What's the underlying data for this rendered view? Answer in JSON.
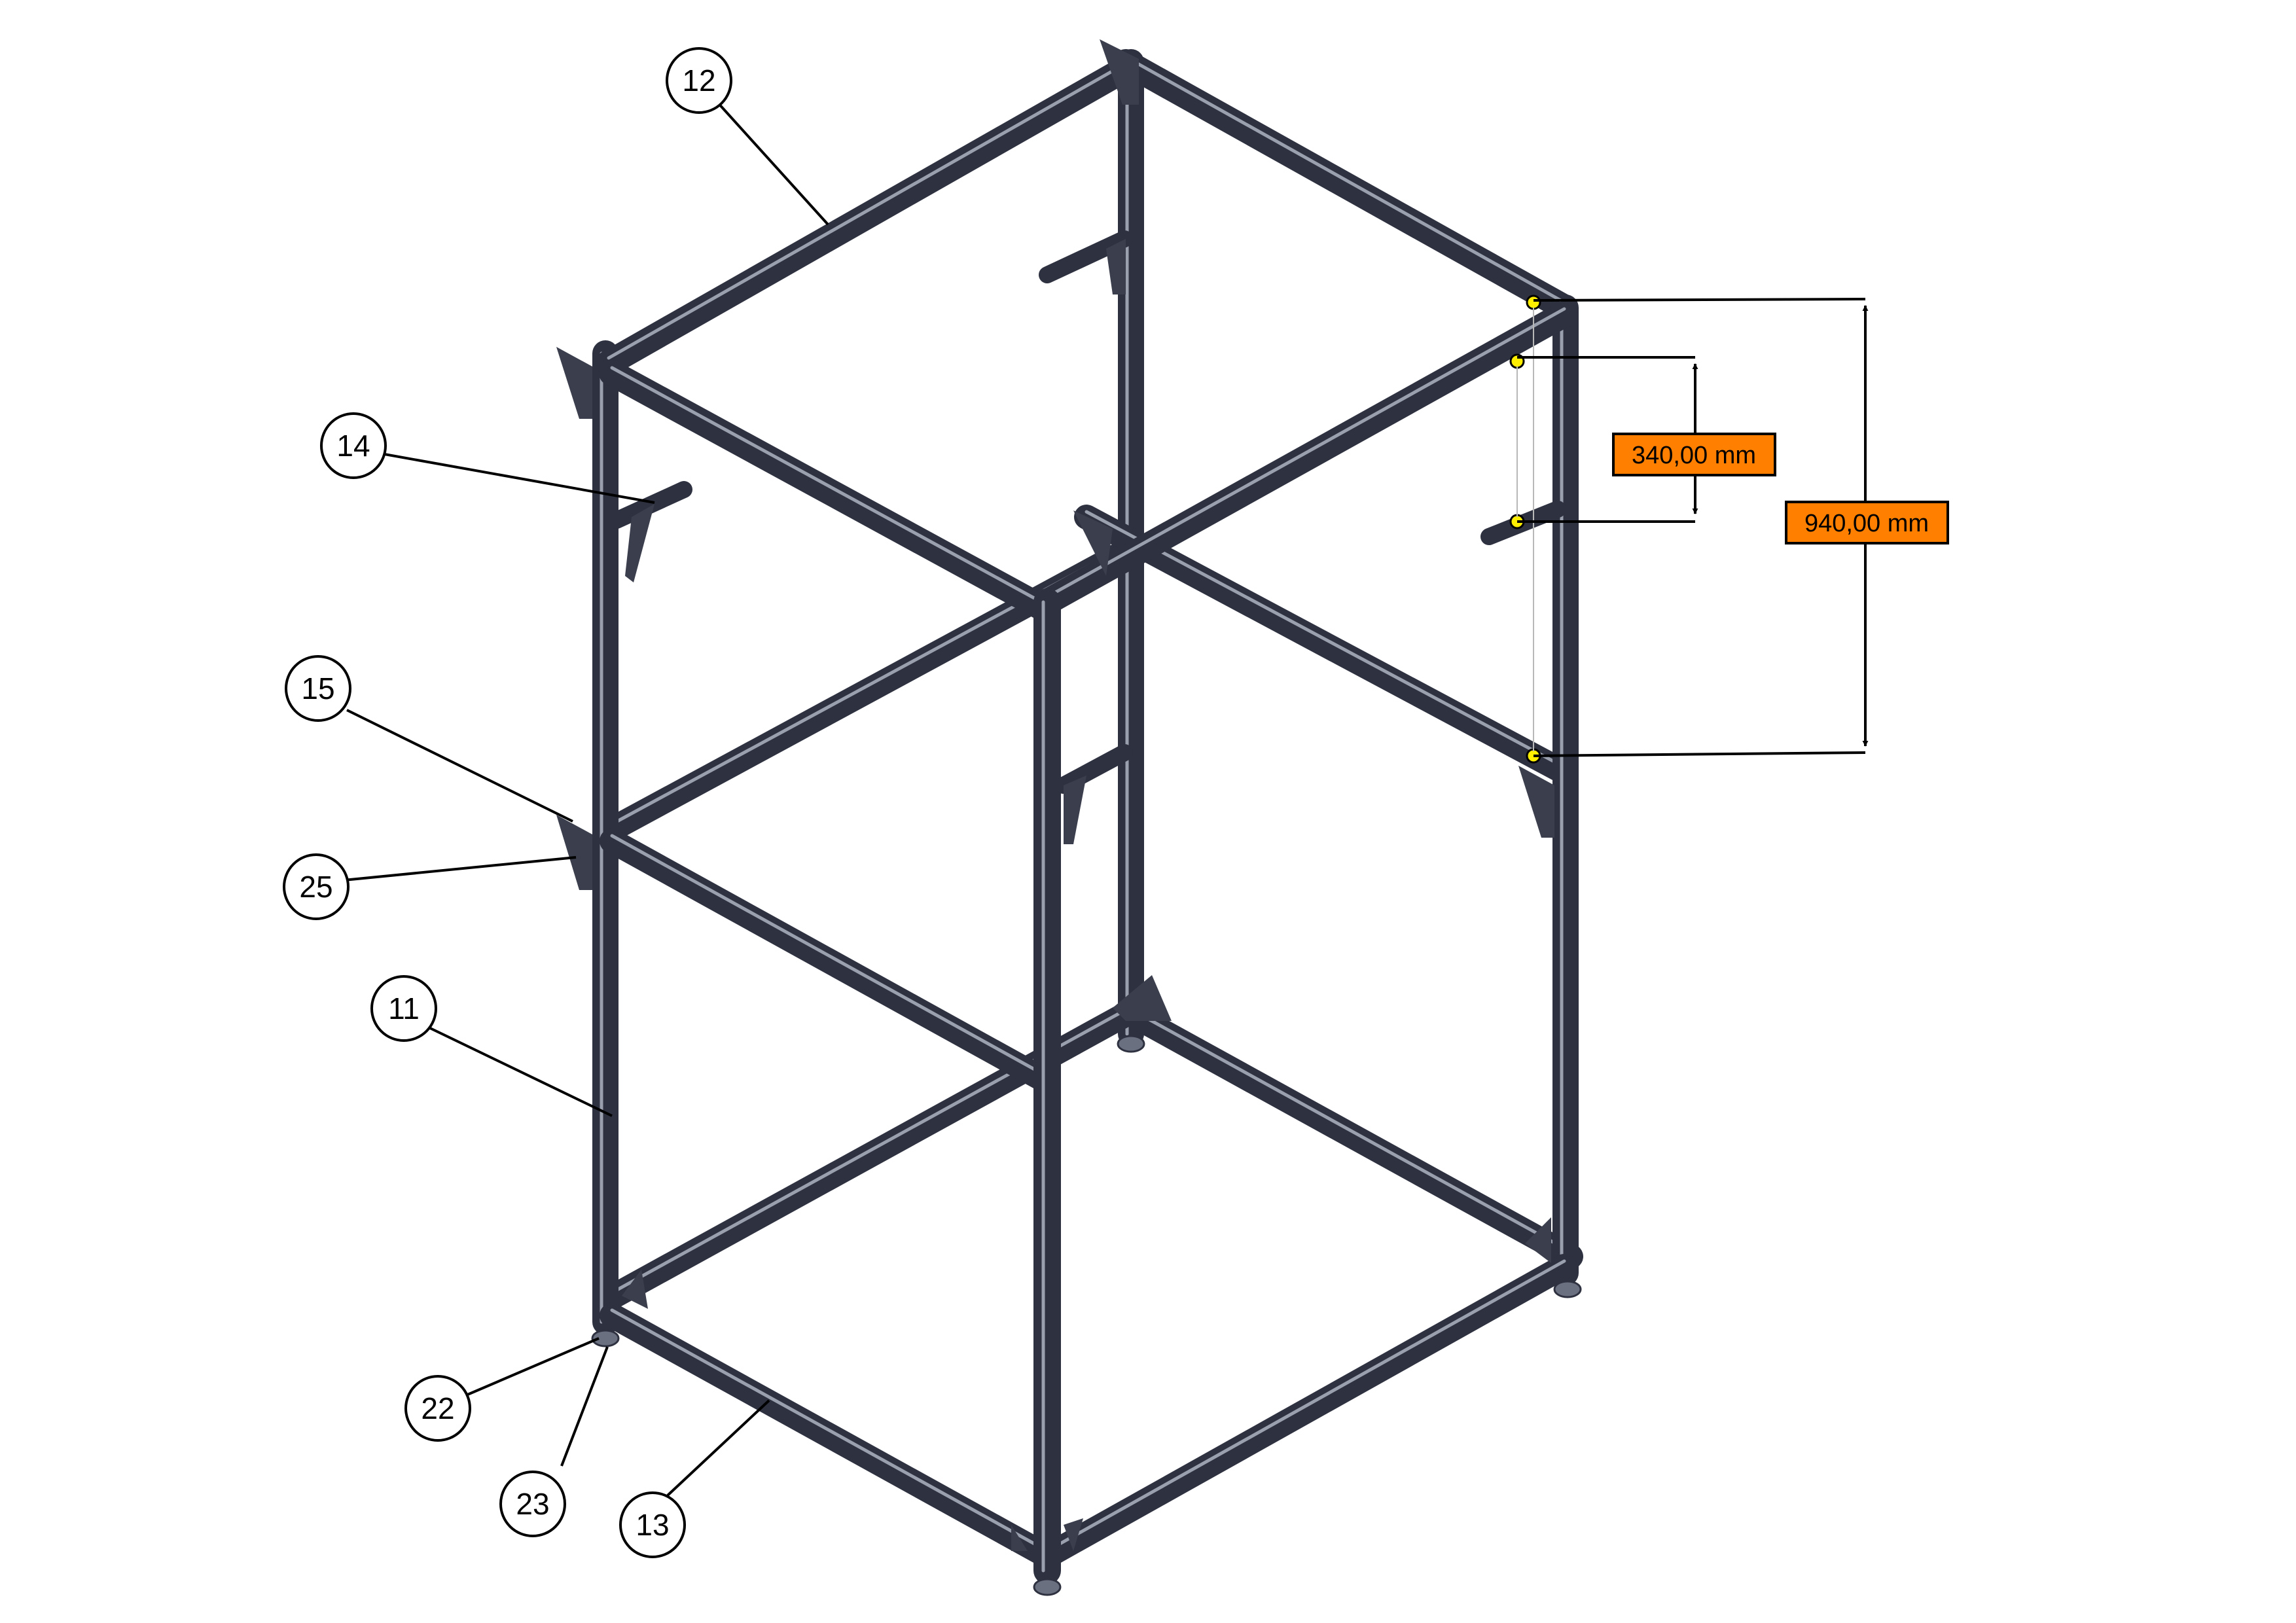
{
  "balloons": [
    {
      "id": "b12",
      "label": "12"
    },
    {
      "id": "b14",
      "label": "14"
    },
    {
      "id": "b15",
      "label": "15"
    },
    {
      "id": "b25",
      "label": "25"
    },
    {
      "id": "b11",
      "label": "11"
    },
    {
      "id": "b22",
      "label": "22"
    },
    {
      "id": "b23",
      "label": "23"
    },
    {
      "id": "b13",
      "label": "13"
    }
  ],
  "dimensions": {
    "short": "340,00 mm",
    "tall": "940,00 mm"
  },
  "colors": {
    "profile": "#464b5a",
    "profile_dark": "#2e3140",
    "profile_light": "#9aa0ad",
    "dimension_fill": "#ff7f00",
    "marker": "#ffee00",
    "line": "#000000"
  }
}
